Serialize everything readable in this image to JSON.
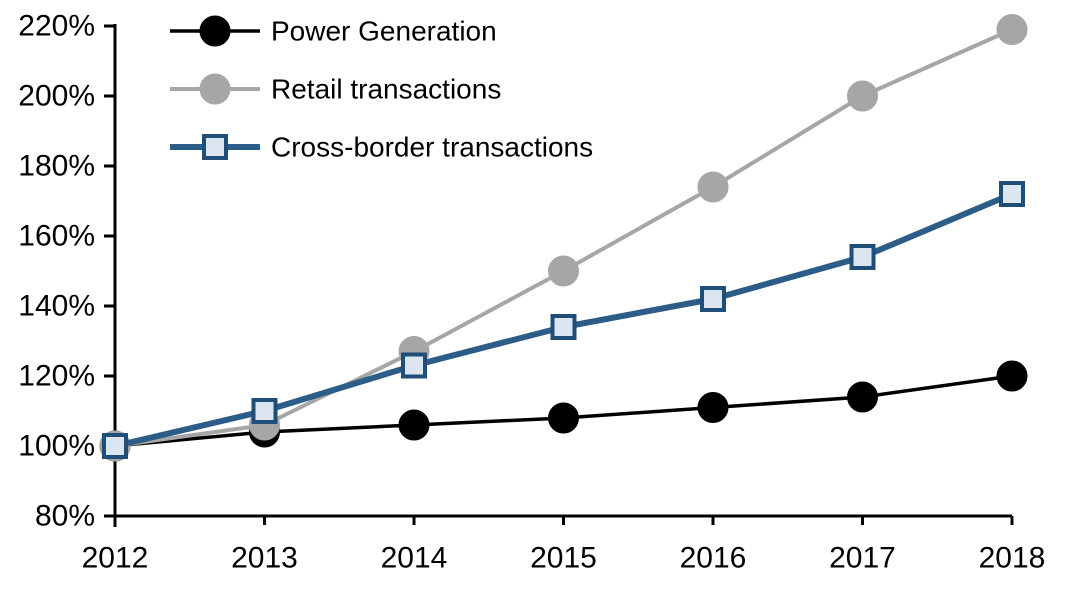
{
  "chart_data": {
    "type": "line",
    "x_categories": [
      "2012",
      "2013",
      "2014",
      "2015",
      "2016",
      "2017",
      "2018"
    ],
    "y_axis": {
      "min": 80,
      "max": 220,
      "step": 20,
      "tick_suffix": "%",
      "tick_labels": [
        "80%",
        "100%",
        "120%",
        "140%",
        "160%",
        "180%",
        "200%",
        "220%"
      ]
    },
    "x_axis": {
      "tick_labels": [
        "2012",
        "2013",
        "2014",
        "2015",
        "2016",
        "2017",
        "2018"
      ]
    },
    "grid": false,
    "legend": {
      "position": "top-left-inside"
    },
    "series": [
      {
        "name": "Power Generation",
        "marker": "circle",
        "line_color": "#000000",
        "marker_fill": "#000000",
        "marker_stroke": "#000000",
        "line_width": 3.5,
        "marker_size": 15,
        "values": [
          100,
          104,
          106,
          108,
          111,
          114,
          120
        ]
      },
      {
        "name": "Retail transactions",
        "marker": "circle",
        "line_color": "#a6a6a6",
        "marker_fill": "#a6a6a6",
        "marker_stroke": "#a6a6a6",
        "line_width": 4,
        "marker_size": 15,
        "values": [
          100,
          106,
          127,
          150,
          174,
          200,
          219
        ]
      },
      {
        "name": "Cross-border transactions",
        "marker": "square",
        "line_color": "#2c5c88",
        "marker_fill": "#dce6f1",
        "marker_stroke": "#1f4e79",
        "line_width": 6,
        "marker_size": 13,
        "values": [
          100,
          110,
          123,
          134,
          142,
          154,
          172
        ]
      }
    ]
  },
  "colors": {
    "axis": "#000000",
    "background": "#ffffff",
    "text": "#000000"
  }
}
